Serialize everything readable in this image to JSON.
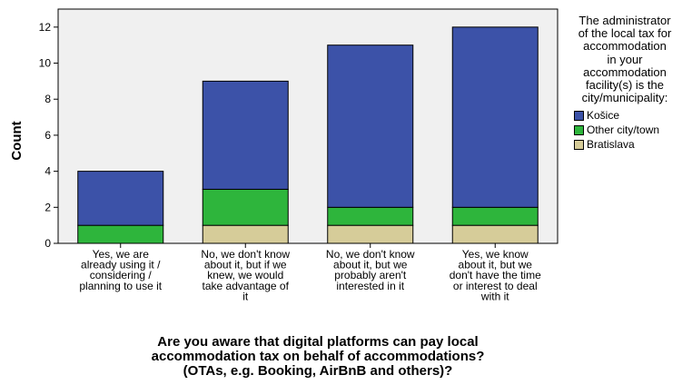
{
  "chart_data": {
    "type": "bar",
    "stacked": true,
    "categories": [
      "Yes, we are already using it / considering / planning to use it",
      "No, we don't know about it, but if we knew, we would take advantage of it",
      "No, we don't know about it, but we probably aren't interested in it",
      "Yes, we know about it, but we don't have the time or interest to deal with it"
    ],
    "category_lines": [
      [
        "Yes, we are",
        "already using it /",
        "considering /",
        "planning to use it"
      ],
      [
        "No, we don't know",
        "about it, but if we",
        "knew, we would",
        "take advantage of",
        "it"
      ],
      [
        "No, we don't know",
        "about it, but we",
        "probably aren't",
        "interested in it"
      ],
      [
        "Yes, we know",
        "about it, but we",
        "don't have the time",
        "or interest to deal",
        "with it"
      ]
    ],
    "series": [
      {
        "name": "Bratislava",
        "color": "#d6cc99",
        "values": [
          0,
          1,
          1,
          1
        ]
      },
      {
        "name": "Other city/town",
        "color": "#2eb53c",
        "values": [
          1,
          2,
          1,
          1
        ]
      },
      {
        "name": "Košice",
        "color": "#3c52a8",
        "values": [
          3,
          6,
          9,
          10
        ]
      }
    ],
    "legend_order": [
      "Košice",
      "Other city/town",
      "Bratislava"
    ],
    "legend_title": "The administrator\nof the local tax for\naccommodation\nin your\naccommodation\nfacility(s) is the\ncity/municipality:",
    "xlabel": "Are you aware that digital platforms can pay local\naccommodation tax on behalf of accommodations?\n(OTAs, e.g. Booking, AirBnB and others)?",
    "ylabel": "Count",
    "ylim": [
      0,
      13
    ],
    "yticks": [
      0,
      2,
      4,
      6,
      8,
      10,
      12
    ],
    "grid": false,
    "legend_position": "right",
    "plot_background": "#f0f0f0"
  }
}
